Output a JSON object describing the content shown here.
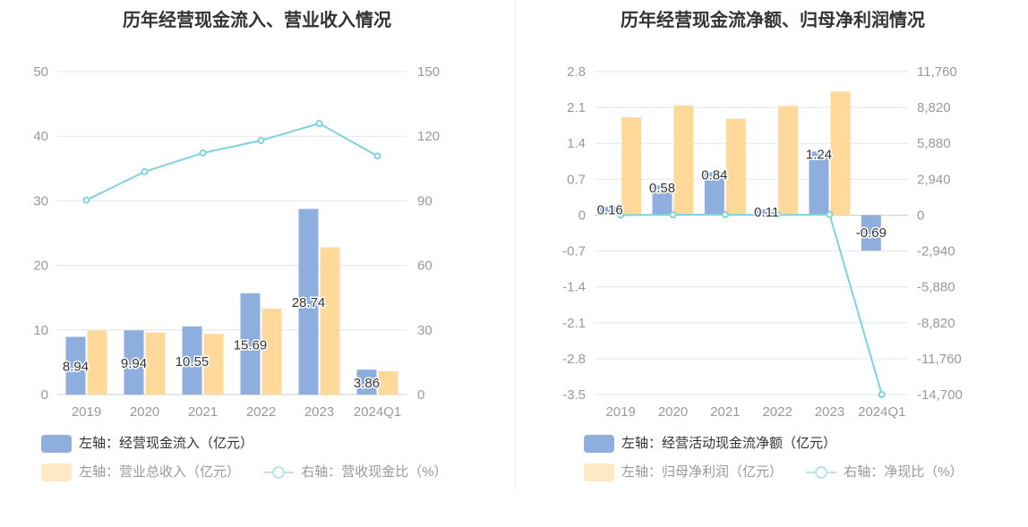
{
  "colors": {
    "bar_primary": "#8eaedd",
    "bar_secondary": "#ffd99a",
    "line": "#7fd4dc",
    "grid": "#e1e6f0",
    "axis_text": "#999999"
  },
  "chart_data": [
    {
      "type": "bar",
      "title": "历年经营现金流入、营业收入情况",
      "categories": [
        "2019",
        "2020",
        "2021",
        "2022",
        "2023",
        "2024Q1"
      ],
      "y_left": {
        "ylim": [
          0,
          50
        ],
        "ticks": [
          "0",
          "10",
          "20",
          "30",
          "40",
          "50"
        ]
      },
      "y_right": {
        "ylim": [
          0,
          150
        ],
        "ticks": [
          "0",
          "30",
          "60",
          "90",
          "120",
          "150"
        ]
      },
      "grid": true,
      "legend_position": "bottom",
      "series": [
        {
          "name": "左轴：经营现金流入（亿元）",
          "type": "bar",
          "axis": "left",
          "values": [
            8.94,
            9.94,
            10.55,
            15.69,
            28.74,
            3.86
          ],
          "labels": [
            "8.94",
            "9.94",
            "10.55",
            "15.69",
            "28.74",
            "3.86"
          ]
        },
        {
          "name": "左轴：营业总收入（亿元）",
          "type": "bar",
          "axis": "left",
          "values": [
            9.9,
            9.6,
            9.4,
            13.3,
            22.8,
            3.6
          ]
        },
        {
          "name": "右轴：营收现金比（%）",
          "type": "line",
          "axis": "right",
          "values": [
            90.3,
            103.5,
            112.2,
            118.0,
            125.9,
            110.8
          ]
        }
      ]
    },
    {
      "type": "bar",
      "title": "历年经营现金流净额、归母净利润情况",
      "categories": [
        "2019",
        "2020",
        "2021",
        "2022",
        "2023",
        "2024Q1"
      ],
      "y_left": {
        "ylim": [
          -3.5,
          2.8
        ],
        "ticks": [
          "-3.5",
          "-2.8",
          "-2.1",
          "-1.4",
          "-0.7",
          "0",
          "0.7",
          "1.4",
          "2.1",
          "2.8"
        ]
      },
      "y_right": {
        "ylim": [
          -14700,
          11760
        ],
        "ticks": [
          "-14,700",
          "-11,760",
          "-8,820",
          "-5,880",
          "-2,940",
          "0",
          "2,940",
          "5,880",
          "8,820",
          "11,760"
        ]
      },
      "grid": true,
      "legend_position": "bottom",
      "series": [
        {
          "name": "左轴：经营活动现金流净额（亿元）",
          "type": "bar",
          "axis": "left",
          "values": [
            0.16,
            0.58,
            0.84,
            0.11,
            1.24,
            -0.69
          ],
          "labels": [
            "0.16",
            "0.58",
            "0.84",
            "0.11",
            "1.24",
            "-0.69"
          ]
        },
        {
          "name": "左轴：归母净利润（亿元）",
          "type": "bar",
          "axis": "left",
          "values": [
            1.91,
            2.14,
            1.88,
            2.13,
            2.41,
            -0.003
          ]
        },
        {
          "name": "右轴：净现比（%）",
          "type": "line",
          "axis": "right",
          "values": [
            8,
            27,
            45,
            5,
            51,
            -14700
          ]
        }
      ]
    }
  ]
}
